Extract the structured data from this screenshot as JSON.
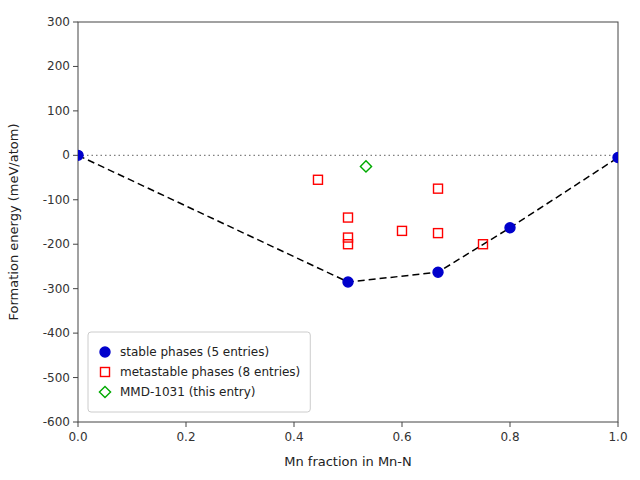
{
  "chart_data": {
    "type": "scatter",
    "xlabel": "Mn fraction in Mn-N",
    "ylabel": "Formation energy (meV/atom)",
    "xlim": [
      0.0,
      1.0
    ],
    "ylim": [
      -600,
      300
    ],
    "xticks": [
      {
        "value": 0.0,
        "label": "0.0"
      },
      0.2,
      0.4,
      0.6,
      0.8,
      {
        "value": 1.0,
        "label": "1.0"
      }
    ],
    "yticks": [
      -600,
      -500,
      -400,
      -300,
      -200,
      -100,
      0,
      100,
      200,
      300
    ],
    "grid": false,
    "legend": "lower left",
    "series": [
      {
        "name": "stable phases (5 entries)",
        "type": "scatter",
        "marker": "circle",
        "color": "#0000cc",
        "x": [
          0.0,
          0.5,
          0.6667,
          0.8,
          1.0
        ],
        "values": [
          0.0,
          -285.0,
          -263.0,
          -163.0,
          -5.0
        ]
      },
      {
        "name": "metastable phases (8 entries)",
        "type": "scatter",
        "marker": "square-open",
        "color": "#ff0000",
        "x": [
          0.4444,
          0.5,
          0.5,
          0.5,
          0.6,
          0.6667,
          0.6667,
          0.75
        ],
        "values": [
          -55.0,
          -140.0,
          -185.0,
          -200.0,
          -170.0,
          -175.0,
          -75.0,
          -200.0
        ]
      },
      {
        "name": "MMD-1031 (this entry)",
        "type": "scatter",
        "marker": "diamond-open",
        "color": "#00aa00",
        "x": [
          0.5333
        ],
        "values": [
          -25.0
        ]
      },
      {
        "type": "line",
        "line_style": "dashed",
        "color": "black",
        "x": [
          0.0,
          0.5,
          0.6667,
          0.8,
          1.0
        ],
        "values": [
          0.0,
          -285.0,
          -263.0,
          -163.0,
          -5.0
        ]
      },
      {
        "type": "hline",
        "line_style": "dotted",
        "color": "gray",
        "values": [
          0.0
        ]
      }
    ]
  }
}
